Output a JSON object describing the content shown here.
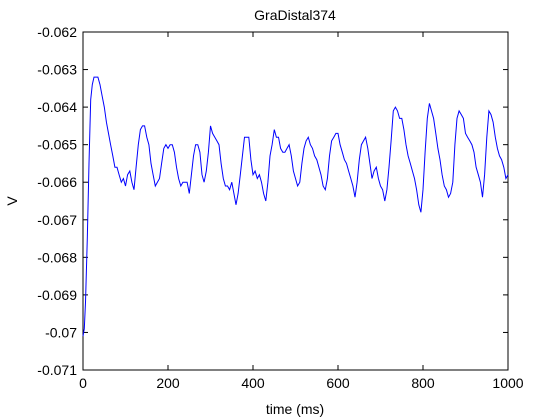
{
  "chart_data": {
    "type": "line",
    "title": "GraDistal374",
    "xlabel": "time (ms)",
    "ylabel": "V",
    "xlim": [
      0,
      1000
    ],
    "ylim": [
      -0.071,
      -0.062
    ],
    "xticks": [
      0,
      200,
      400,
      600,
      800,
      1000
    ],
    "xtick_labels": [
      "0",
      "200",
      "400",
      "600",
      "800",
      "1000"
    ],
    "yticks": [
      -0.071,
      -0.07,
      -0.069,
      -0.068,
      -0.067,
      -0.066,
      -0.065,
      -0.064,
      -0.063,
      -0.062
    ],
    "ytick_labels": [
      "-0.071",
      "-0.07",
      "-0.069",
      "-0.068",
      "-0.067",
      "-0.066",
      "-0.065",
      "-0.064",
      "-0.063",
      "-0.062"
    ],
    "grid": false,
    "line_color": "#0000ff",
    "series": [
      {
        "x": [
          0,
          3,
          6,
          10,
          14,
          18,
          22,
          26,
          30,
          35,
          40,
          45,
          50,
          55,
          60,
          65,
          70,
          75,
          80,
          85,
          90,
          95,
          100,
          105,
          110,
          115,
          120,
          125,
          130,
          135,
          140,
          145,
          150,
          155,
          160,
          165,
          170,
          175,
          180,
          185,
          190,
          195,
          200,
          205,
          210,
          215,
          220,
          225,
          230,
          235,
          240,
          245,
          250,
          255,
          260,
          265,
          270,
          275,
          280,
          285,
          290,
          295,
          300,
          305,
          310,
          315,
          320,
          325,
          330,
          335,
          340,
          345,
          350,
          355,
          360,
          365,
          370,
          375,
          380,
          385,
          390,
          395,
          400,
          405,
          410,
          415,
          420,
          425,
          430,
          435,
          440,
          445,
          450,
          455,
          460,
          465,
          470,
          475,
          480,
          485,
          490,
          495,
          500,
          505,
          510,
          515,
          520,
          525,
          530,
          535,
          540,
          545,
          550,
          555,
          560,
          565,
          570,
          575,
          580,
          585,
          590,
          595,
          600,
          605,
          610,
          615,
          620,
          625,
          630,
          635,
          640,
          645,
          650,
          655,
          660,
          665,
          670,
          675,
          680,
          685,
          690,
          695,
          700,
          705,
          710,
          715,
          720,
          725,
          730,
          735,
          740,
          745,
          750,
          755,
          760,
          765,
          770,
          775,
          780,
          785,
          790,
          795,
          800,
          805,
          810,
          815,
          820,
          825,
          830,
          835,
          840,
          845,
          850,
          855,
          860,
          865,
          870,
          875,
          880,
          885,
          890,
          895,
          900,
          905,
          910,
          915,
          920,
          925,
          930,
          935,
          940,
          945,
          950,
          955,
          960,
          965,
          970,
          975,
          980,
          985,
          990,
          995,
          1000
        ],
        "y": [
          -0.0701,
          -0.0699,
          -0.0692,
          -0.0675,
          -0.0655,
          -0.0638,
          -0.0634,
          -0.0632,
          -0.0632,
          -0.0632,
          -0.0634,
          -0.0637,
          -0.064,
          -0.0644,
          -0.0647,
          -0.065,
          -0.0653,
          -0.0656,
          -0.0656,
          -0.0658,
          -0.066,
          -0.0659,
          -0.0661,
          -0.0658,
          -0.0657,
          -0.066,
          -0.0662,
          -0.0656,
          -0.065,
          -0.0646,
          -0.0645,
          -0.0645,
          -0.0648,
          -0.065,
          -0.0655,
          -0.0658,
          -0.0661,
          -0.066,
          -0.0659,
          -0.0655,
          -0.0651,
          -0.065,
          -0.0651,
          -0.065,
          -0.065,
          -0.0652,
          -0.0656,
          -0.0659,
          -0.0661,
          -0.066,
          -0.066,
          -0.066,
          -0.0663,
          -0.0658,
          -0.0653,
          -0.065,
          -0.065,
          -0.0652,
          -0.0658,
          -0.066,
          -0.0657,
          -0.0652,
          -0.0645,
          -0.0647,
          -0.0648,
          -0.0649,
          -0.065,
          -0.0655,
          -0.0659,
          -0.0661,
          -0.0661,
          -0.0662,
          -0.066,
          -0.0663,
          -0.0666,
          -0.0663,
          -0.0658,
          -0.0653,
          -0.0648,
          -0.0648,
          -0.0648,
          -0.0654,
          -0.0658,
          -0.0657,
          -0.0659,
          -0.0658,
          -0.066,
          -0.0663,
          -0.0665,
          -0.066,
          -0.0653,
          -0.065,
          -0.0646,
          -0.0648,
          -0.0648,
          -0.0651,
          -0.0652,
          -0.0652,
          -0.0651,
          -0.065,
          -0.0653,
          -0.0657,
          -0.0659,
          -0.0661,
          -0.066,
          -0.0655,
          -0.0651,
          -0.0649,
          -0.0648,
          -0.065,
          -0.0651,
          -0.0653,
          -0.0654,
          -0.0656,
          -0.0658,
          -0.0661,
          -0.0662,
          -0.0659,
          -0.0653,
          -0.0649,
          -0.0648,
          -0.0647,
          -0.0647,
          -0.065,
          -0.0652,
          -0.0654,
          -0.0655,
          -0.0657,
          -0.0659,
          -0.0661,
          -0.0664,
          -0.066,
          -0.0654,
          -0.065,
          -0.0649,
          -0.0648,
          -0.0651,
          -0.0655,
          -0.0659,
          -0.0657,
          -0.0656,
          -0.0659,
          -0.0661,
          -0.0662,
          -0.0665,
          -0.0662,
          -0.0656,
          -0.0649,
          -0.0641,
          -0.064,
          -0.0641,
          -0.0643,
          -0.0643,
          -0.0646,
          -0.065,
          -0.0653,
          -0.0655,
          -0.0657,
          -0.0659,
          -0.0662,
          -0.0666,
          -0.0668,
          -0.0662,
          -0.0652,
          -0.0643,
          -0.0639,
          -0.0641,
          -0.0643,
          -0.0647,
          -0.0651,
          -0.0654,
          -0.0658,
          -0.0661,
          -0.0662,
          -0.0664,
          -0.0663,
          -0.066,
          -0.065,
          -0.0643,
          -0.0641,
          -0.0642,
          -0.0643,
          -0.0647,
          -0.0648,
          -0.0649,
          -0.065,
          -0.0652,
          -0.0656,
          -0.0658,
          -0.066,
          -0.0664,
          -0.0658,
          -0.0648,
          -0.0641,
          -0.0642,
          -0.0644,
          -0.0648,
          -0.0651,
          -0.0653,
          -0.0654,
          -0.0656,
          -0.0659,
          -0.0658
        ]
      }
    ]
  }
}
